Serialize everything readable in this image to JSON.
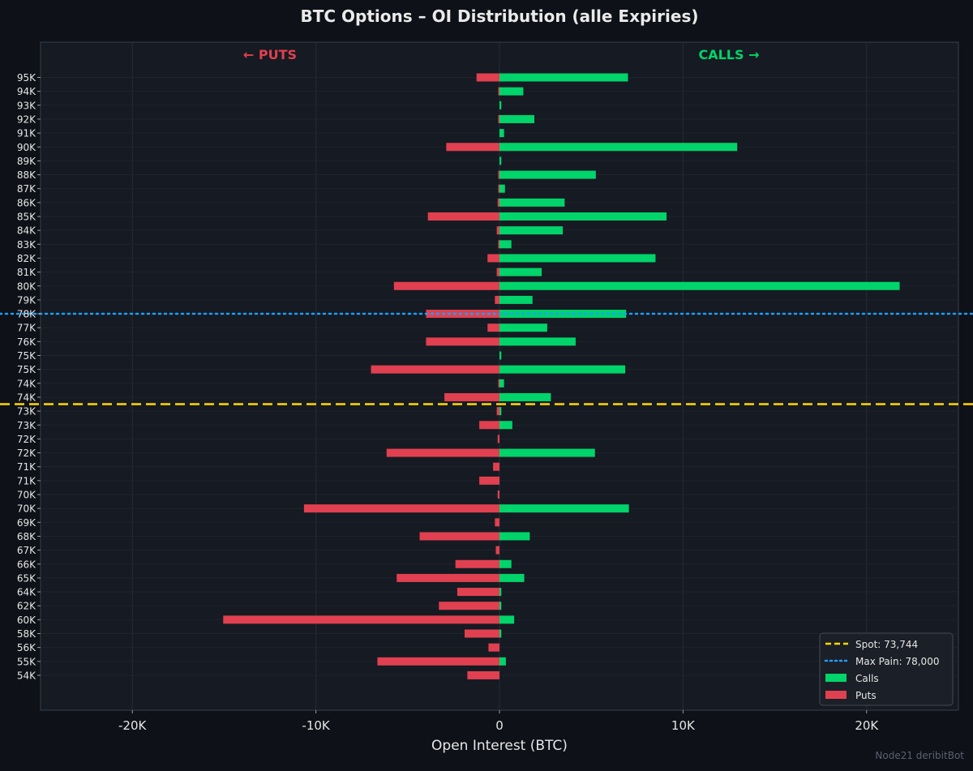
{
  "chart_data": {
    "type": "bar",
    "orientation": "horizontal-diverging",
    "title": "BTC Options – OI Distribution (alle Expiries)",
    "xlabel": "Open Interest (BTC)",
    "xlim": [
      -25000,
      25000
    ],
    "xticks": [
      -20000,
      -10000,
      0,
      10000,
      20000
    ],
    "xtick_labels": [
      "-20K",
      "-10K",
      "0",
      "10K",
      "20K"
    ],
    "grid": true,
    "legend_position": "bottom-right",
    "puts_side_label": "← PUTS",
    "calls_side_label": "CALLS →",
    "categories": [
      "95K",
      "94K",
      "93K",
      "92K",
      "91K",
      "90K",
      "89K",
      "88K",
      "87K",
      "86K",
      "85K",
      "84K",
      "83K",
      "82K",
      "81K",
      "80K",
      "79K",
      "78K",
      "77K",
      "76K",
      "75K",
      "75K",
      "74K",
      "74K",
      "73K",
      "73K",
      "72K",
      "72K",
      "71K",
      "71K",
      "70K",
      "70K",
      "69K",
      "68K",
      "67K",
      "66K",
      "65K",
      "64K",
      "62K",
      "60K",
      "58K",
      "56K",
      "55K",
      "54K"
    ],
    "series": [
      {
        "name": "Calls",
        "color": "#00d46a",
        "values": [
          7000,
          1300,
          100,
          1900,
          250,
          12950,
          100,
          5250,
          300,
          3550,
          9100,
          3450,
          650,
          8500,
          2300,
          21800,
          1800,
          6900,
          2600,
          4150,
          100,
          6850,
          250,
          2800,
          100,
          700,
          0,
          5200,
          0,
          0,
          0,
          7050,
          0,
          1650,
          0,
          650,
          1350,
          100,
          100,
          800,
          100,
          0,
          350,
          0
        ]
      },
      {
        "name": "Puts",
        "color": "#e04050",
        "values": [
          -1250,
          -50,
          0,
          -50,
          0,
          -2900,
          0,
          -50,
          -50,
          -100,
          -3900,
          -150,
          -50,
          -650,
          -150,
          -5750,
          -250,
          -4000,
          -650,
          -4000,
          0,
          -7000,
          -50,
          -3000,
          -150,
          -1100,
          -100,
          -6150,
          -350,
          -1100,
          -100,
          -10650,
          -250,
          -4350,
          -200,
          -2400,
          -5600,
          -2300,
          -3300,
          -15050,
          -1900,
          -600,
          -6650,
          -1750
        ]
      }
    ],
    "reference_lines": [
      {
        "label": "Spot: 73,744",
        "value": 73744,
        "style": "dashed",
        "color": "#ffd700"
      },
      {
        "label": "Max Pain: 78,000",
        "value": 78000,
        "style": "dotted",
        "color": "#1e9fff"
      }
    ]
  },
  "legend": {
    "spot_label": "Spot: 73,744",
    "maxpain_label": "Max Pain: 78,000",
    "calls_label": "Calls",
    "puts_label": "Puts"
  },
  "watermark": "Node21 deribitBot"
}
